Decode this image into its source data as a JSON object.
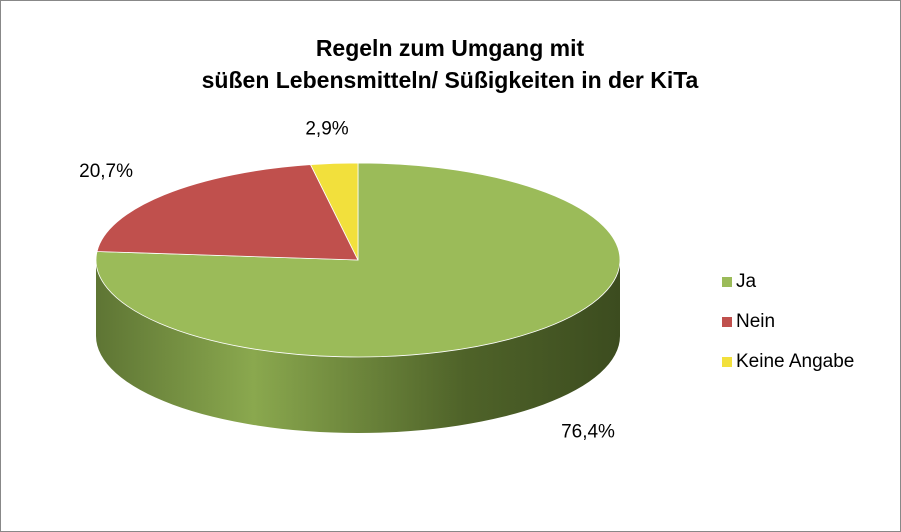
{
  "chart_data": {
    "type": "pie",
    "title": [
      "Regeln zum Umgang mit",
      "süßen Lebensmitteln/ Süßigkeiten in der KiTa"
    ],
    "categories": [
      "Ja",
      "Nein",
      "Keine Angabe"
    ],
    "values": [
      76.4,
      20.7,
      2.9
    ],
    "value_labels": [
      "76,4%",
      "20,7%",
      "2,9%"
    ],
    "colors": [
      "#9bbb59",
      "#c0504d",
      "#f2e03c"
    ],
    "legend": "right"
  }
}
